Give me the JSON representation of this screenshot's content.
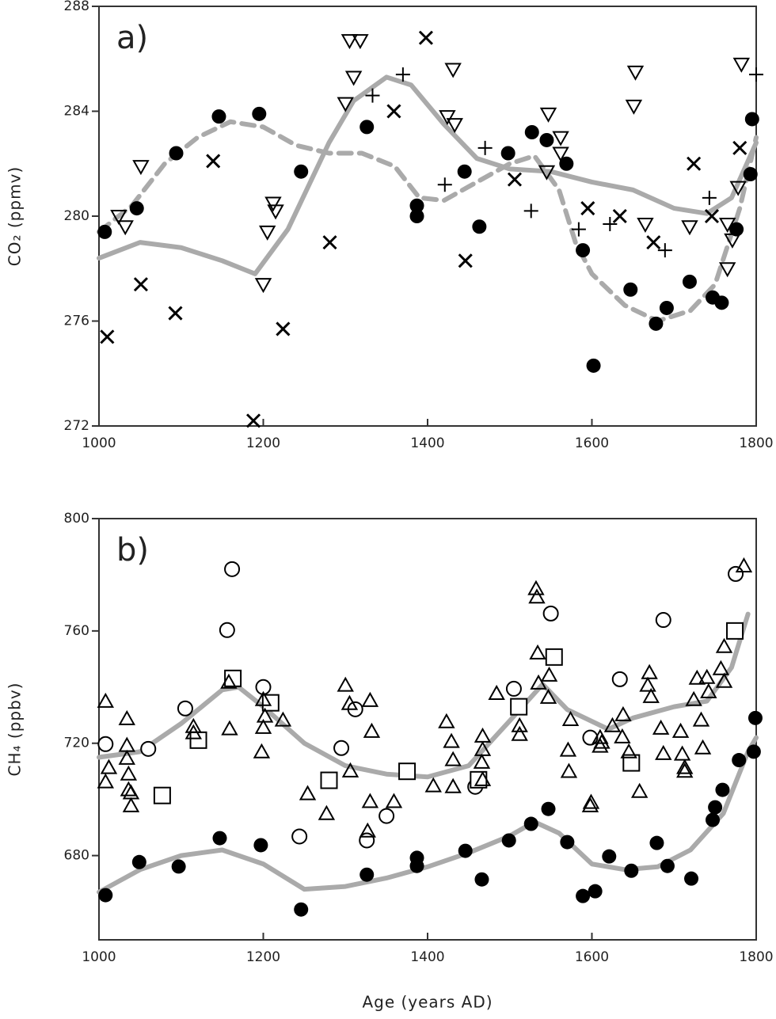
{
  "chart_data": [
    {
      "type": "scatter",
      "panel_label": "a)",
      "ylabel": "CO₂ (ppmv)",
      "xlim": [
        1000,
        1800
      ],
      "xticks": [
        1000,
        1200,
        1400,
        1600,
        1800
      ],
      "ylim": [
        272,
        288
      ],
      "yticks": [
        272,
        276,
        280,
        284,
        288
      ],
      "series": [
        {
          "marker": "filled-circle",
          "color": "#000000",
          "x": [
            1007,
            1046,
            1094,
            1146,
            1195,
            1246,
            1326,
            1387,
            1387,
            1445,
            1463,
            1498,
            1527,
            1545,
            1569,
            1589,
            1602,
            1647,
            1678,
            1691,
            1719,
            1747,
            1758,
            1776,
            1795,
            1793
          ],
          "values": [
            279.4,
            280.3,
            282.4,
            283.8,
            283.9,
            281.7,
            283.4,
            280.4,
            280.0,
            281.7,
            279.6,
            282.4,
            283.2,
            282.9,
            282.0,
            278.7,
            274.3,
            277.2,
            275.9,
            276.5,
            277.5,
            276.9,
            276.7,
            279.5,
            283.7,
            281.6
          ]
        },
        {
          "marker": "cross",
          "color": "#000000",
          "x": [
            1010,
            1051,
            1093,
            1139,
            1188,
            1224,
            1281,
            1359,
            1398,
            1446,
            1506,
            1595,
            1634,
            1675,
            1724,
            1746,
            1780
          ],
          "values": [
            275.4,
            277.4,
            276.3,
            282.1,
            272.2,
            275.7,
            279.0,
            284.0,
            286.8,
            278.3,
            281.4,
            280.3,
            280.0,
            279.0,
            282.0,
            280.0,
            282.6
          ]
        },
        {
          "marker": "plus",
          "color": "#000000",
          "x": [
            1333,
            1370,
            1421,
            1470,
            1526,
            1584,
            1622,
            1689,
            1743,
            1800
          ],
          "values": [
            284.6,
            285.4,
            281.2,
            282.6,
            280.2,
            279.5,
            279.7,
            278.7,
            280.7,
            285.4
          ]
        },
        {
          "marker": "triangle-down",
          "color": "#000000",
          "x": [
            1024,
            1032,
            1051,
            1200,
            1205,
            1212,
            1215,
            1300,
            1305,
            1310,
            1318,
            1431,
            1424,
            1433,
            1547,
            1562,
            1562,
            1545,
            1653,
            1651,
            1665,
            1719,
            1765,
            1771,
            1765,
            1782,
            1778
          ],
          "values": [
            280.0,
            279.6,
            281.9,
            277.4,
            279.4,
            280.5,
            280.2,
            284.3,
            286.7,
            285.3,
            286.7,
            285.6,
            283.8,
            283.5,
            283.9,
            283.0,
            282.4,
            281.7,
            285.5,
            284.2,
            279.7,
            279.6,
            279.7,
            279.1,
            278.0,
            285.8,
            281.1
          ]
        },
        {
          "marker": "line",
          "color": "#aaaaaa",
          "dash": false,
          "x": [
            1000,
            1050,
            1100,
            1150,
            1190,
            1230,
            1280,
            1310,
            1350,
            1380,
            1420,
            1460,
            1500,
            1550,
            1600,
            1650,
            1700,
            1740,
            1770,
            1800
          ],
          "values": [
            278.4,
            279.0,
            278.8,
            278.3,
            277.8,
            279.5,
            282.8,
            284.4,
            285.3,
            285.0,
            283.5,
            282.2,
            281.8,
            281.7,
            281.3,
            281.0,
            280.3,
            280.1,
            280.7,
            282.8
          ]
        },
        {
          "marker": "line",
          "color": "#aaaaaa",
          "dash": true,
          "x": [
            1000,
            1040,
            1080,
            1120,
            1160,
            1200,
            1240,
            1280,
            1320,
            1360,
            1390,
            1420,
            1460,
            1500,
            1530,
            1560,
            1580,
            1600,
            1640,
            1680,
            1720,
            1750,
            1780,
            1800
          ],
          "values": [
            279.4,
            280.4,
            282.0,
            283.0,
            283.6,
            283.4,
            282.7,
            282.4,
            282.4,
            281.9,
            280.7,
            280.6,
            281.3,
            282.0,
            282.3,
            281.0,
            279.0,
            277.8,
            276.6,
            276.0,
            276.4,
            277.4,
            280.3,
            283.0
          ]
        }
      ]
    },
    {
      "type": "scatter",
      "panel_label": "b)",
      "ylabel": "CH₄ (ppbv)",
      "xlabel": "Age (years AD)",
      "xlim": [
        1000,
        1800
      ],
      "xticks": [
        1000,
        1200,
        1400,
        1600,
        1800
      ],
      "ylim": [
        650,
        800
      ],
      "yticks": [
        680,
        720,
        760,
        800
      ],
      "series": [
        {
          "marker": "filled-circle",
          "color": "#000000",
          "x": [
            1008,
            1049,
            1097,
            1147,
            1197,
            1246,
            1326,
            1387,
            1387,
            1446,
            1466,
            1499,
            1526,
            1547,
            1570,
            1589,
            1604,
            1621,
            1648,
            1679,
            1692,
            1721,
            1747,
            1750,
            1759,
            1779,
            1797,
            1799
          ],
          "values": [
            665.9,
            677.7,
            676.1,
            686.2,
            683.7,
            660.8,
            673.2,
            679.2,
            676.3,
            681.7,
            671.5,
            685.4,
            691.3,
            696.6,
            684.8,
            665.6,
            667.3,
            679.7,
            674.6,
            684.5,
            676.3,
            671.8,
            692.7,
            697.2,
            703.4,
            714.0,
            717.0,
            729.0
          ]
        },
        {
          "marker": "open-circle",
          "color": "#000000",
          "x": [
            1008,
            1060,
            1105,
            1156,
            1162,
            1200,
            1244,
            1295,
            1312,
            1326,
            1350,
            1458,
            1505,
            1550,
            1598,
            1634,
            1687,
            1775
          ],
          "values": [
            719.7,
            718.0,
            732.4,
            760.3,
            782.0,
            740.0,
            686.8,
            718.3,
            732.1,
            685.4,
            694.1,
            704.5,
            739.4,
            766.2,
            722.0,
            742.8,
            763.9,
            780.3
          ]
        },
        {
          "marker": "square",
          "color": "#000000",
          "x": [
            1077,
            1121,
            1163,
            1209,
            1280,
            1375,
            1462,
            1511,
            1554,
            1648,
            1774
          ],
          "values": [
            701.4,
            721.1,
            743.1,
            734.4,
            706.8,
            710.0,
            707.0,
            733.0,
            750.7,
            713.0,
            760.0
          ]
        },
        {
          "marker": "triangle-up",
          "color": "#000000",
          "x": [
            1008,
            1012,
            1008,
            1034,
            1034,
            1034,
            1036,
            1036,
            1039,
            1039,
            1115,
            1115,
            1158,
            1159,
            1200,
            1200,
            1198,
            1202,
            1224,
            1254,
            1277,
            1300,
            1305,
            1306,
            1330,
            1332,
            1327,
            1330,
            1359,
            1407,
            1423,
            1429,
            1431,
            1431,
            1467,
            1467,
            1466,
            1467,
            1484,
            1512,
            1512,
            1532,
            1533,
            1534,
            1535,
            1547,
            1548,
            1574,
            1572,
            1571,
            1599,
            1598,
            1610,
            1612,
            1610,
            1625,
            1637,
            1638,
            1645,
            1658,
            1668,
            1670,
            1672,
            1684,
            1687,
            1708,
            1710,
            1713,
            1713,
            1724,
            1728,
            1733,
            1735,
            1740,
            1742,
            1757,
            1761,
            1761,
            1785
          ],
          "values": [
            734.9,
            711.3,
            706.2,
            728.7,
            719.2,
            714.6,
            709.0,
            703.4,
            702.3,
            697.7,
            725.9,
            723.7,
            741.7,
            725.1,
            735.5,
            725.6,
            716.9,
            729.6,
            728.2,
            702.0,
            694.9,
            740.6,
            734.1,
            710.1,
            735.2,
            724.2,
            688.7,
            699.2,
            699.2,
            704.8,
            727.6,
            720.6,
            714.1,
            704.5,
            722.5,
            717.7,
            713.2,
            707.0,
            737.7,
            726.2,
            723.1,
            775.0,
            772.0,
            752.1,
            741.4,
            736.3,
            744.2,
            728.4,
            709.9,
            717.5,
            698.9,
            697.7,
            722.0,
            720.3,
            718.9,
            726.2,
            722.2,
            730.1,
            716.9,
            702.8,
            740.6,
            745.1,
            736.6,
            725.3,
            716.3,
            724.2,
            716.1,
            711.3,
            710.0,
            735.5,
            743.1,
            728.2,
            718.3,
            743.4,
            738.3,
            746.5,
            742.0,
            754.4,
            783.1
          ]
        },
        {
          "marker": "line",
          "color": "#aaaaaa",
          "dash": false,
          "x": [
            1000,
            1050,
            1100,
            1150,
            1170,
            1200,
            1250,
            1300,
            1350,
            1400,
            1450,
            1500,
            1540,
            1570,
            1620,
            1650,
            1700,
            1740,
            1770,
            1790
          ],
          "values": [
            715,
            717,
            727,
            739,
            740,
            733,
            720,
            712,
            709,
            708,
            712,
            728,
            741,
            732,
            725,
            729,
            733,
            735,
            747,
            766
          ]
        },
        {
          "marker": "line",
          "color": "#aaaaaa",
          "dash": false,
          "x": [
            1000,
            1050,
            1100,
            1150,
            1200,
            1250,
            1300,
            1350,
            1400,
            1450,
            1500,
            1530,
            1560,
            1600,
            1640,
            1680,
            1720,
            1760,
            1790,
            1800
          ],
          "values": [
            667,
            675,
            680,
            682,
            677,
            668,
            669,
            672,
            676,
            681,
            687,
            692,
            688,
            677,
            675,
            676,
            682,
            695,
            717,
            722
          ]
        }
      ]
    }
  ]
}
